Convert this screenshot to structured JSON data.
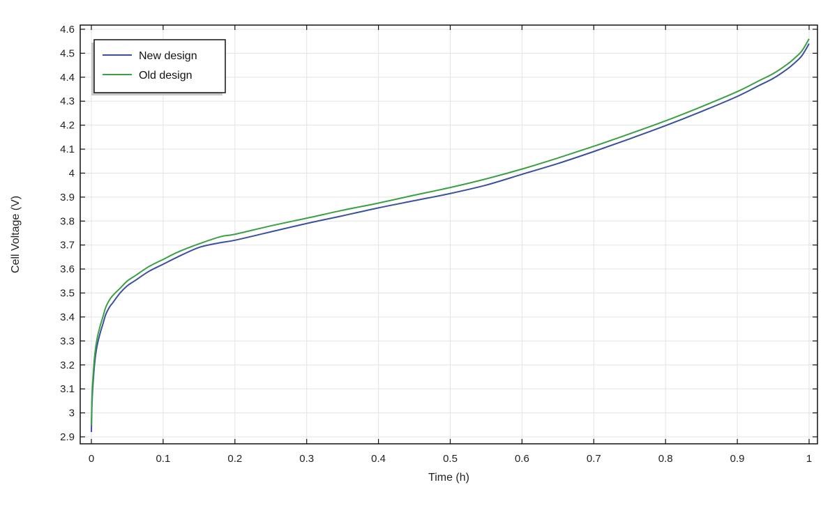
{
  "chart_data": {
    "type": "line",
    "xlabel": "Time (h)",
    "ylabel": "Cell Voltage (V)",
    "xlim": [
      0,
      1
    ],
    "ylim": [
      2.9,
      4.6
    ],
    "x_ticks": [
      0,
      0.1,
      0.2,
      0.3,
      0.4,
      0.5,
      0.6,
      0.7,
      0.8,
      0.9,
      1
    ],
    "x_tick_labels": [
      "0",
      "0.1",
      "0.2",
      "0.3",
      "0.4",
      "0.5",
      "0.6",
      "0.7",
      "0.8",
      "0.9",
      "1"
    ],
    "y_ticks": [
      2.9,
      3,
      3.1,
      3.2,
      3.3,
      3.4,
      3.5,
      3.6,
      3.7,
      3.8,
      3.9,
      4,
      4.1,
      4.2,
      4.3,
      4.4,
      4.5,
      4.6
    ],
    "y_tick_labels": [
      "2.9",
      "3",
      "3.1",
      "3.2",
      "3.3",
      "3.4",
      "3.5",
      "3.6",
      "3.7",
      "3.8",
      "3.9",
      "4",
      "4.1",
      "4.2",
      "4.3",
      "4.4",
      "4.5",
      "4.6"
    ],
    "grid": true,
    "legend_position": "top-left",
    "series": [
      {
        "name": "New design",
        "color": "#3b4fa0",
        "x": [
          0,
          0.001,
          0.003,
          0.005,
          0.008,
          0.012,
          0.016,
          0.02,
          0.025,
          0.03,
          0.04,
          0.05,
          0.06,
          0.08,
          0.1,
          0.12,
          0.15,
          0.18,
          0.2,
          0.25,
          0.3,
          0.35,
          0.4,
          0.45,
          0.5,
          0.55,
          0.6,
          0.65,
          0.7,
          0.75,
          0.8,
          0.85,
          0.9,
          0.93,
          0.95,
          0.97,
          0.98,
          0.99,
          1.0
        ],
        "y": [
          2.92,
          3.05,
          3.15,
          3.22,
          3.28,
          3.33,
          3.37,
          3.41,
          3.44,
          3.46,
          3.5,
          3.53,
          3.55,
          3.59,
          3.62,
          3.65,
          3.69,
          3.71,
          3.72,
          3.755,
          3.79,
          3.822,
          3.855,
          3.885,
          3.915,
          3.95,
          3.995,
          4.04,
          4.09,
          4.143,
          4.198,
          4.257,
          4.32,
          4.365,
          4.395,
          4.435,
          4.46,
          4.49,
          4.54
        ]
      },
      {
        "name": "Old design",
        "color": "#3aa043",
        "x": [
          0,
          0.001,
          0.003,
          0.005,
          0.008,
          0.012,
          0.016,
          0.02,
          0.025,
          0.03,
          0.04,
          0.05,
          0.06,
          0.08,
          0.1,
          0.12,
          0.15,
          0.18,
          0.2,
          0.25,
          0.3,
          0.35,
          0.4,
          0.45,
          0.5,
          0.55,
          0.6,
          0.65,
          0.7,
          0.75,
          0.8,
          0.85,
          0.9,
          0.93,
          0.95,
          0.97,
          0.98,
          0.99,
          1.0
        ],
        "y": [
          2.95,
          3.08,
          3.18,
          3.25,
          3.31,
          3.36,
          3.4,
          3.44,
          3.47,
          3.49,
          3.52,
          3.55,
          3.57,
          3.61,
          3.64,
          3.67,
          3.705,
          3.735,
          3.745,
          3.78,
          3.812,
          3.845,
          3.875,
          3.908,
          3.94,
          3.976,
          4.017,
          4.063,
          4.112,
          4.164,
          4.218,
          4.277,
          4.34,
          4.385,
          4.415,
          4.455,
          4.48,
          4.51,
          4.56
        ]
      }
    ]
  }
}
